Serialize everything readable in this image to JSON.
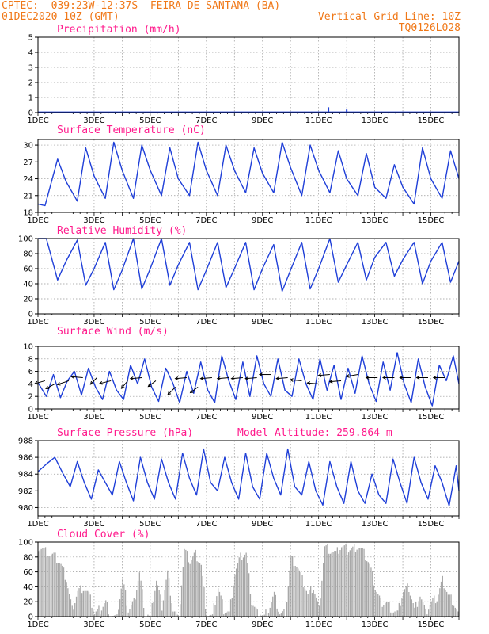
{
  "header": {
    "line1": "CPTEC:  039:23W-12:37S  FEIRA DE SANTANA (BA)",
    "line2": "01DEC2020 10Z (GMT)",
    "grid_note": "Vertical Grid Line: 10Z",
    "code": "TQ0126L028"
  },
  "colors": {
    "header": "#f07818",
    "title": "#ff1a8c",
    "line": "#1f3fd8",
    "cloud": "#a8a8a8"
  },
  "chart_data": [
    {
      "type": "bar",
      "title": "Precipitation (mm/h)",
      "ylim": [
        0,
        5
      ],
      "yticks": [
        0,
        1,
        2,
        3,
        4,
        5
      ],
      "x_labels": [
        "1DEC",
        "3DEC",
        "5DEC",
        "7DEC",
        "9DEC",
        "11DEC",
        "13DEC",
        "15DEC"
      ],
      "x_days": [
        1,
        16
      ],
      "events": [
        {
          "day": 11.35,
          "value": 0.35
        },
        {
          "day": 12.0,
          "value": 0.2
        },
        {
          "day": 12.8,
          "value": 0.05
        }
      ]
    },
    {
      "type": "line",
      "title": "Surface Temperature (nC)",
      "ylim": [
        18,
        31
      ],
      "yticks": [
        18,
        21,
        24,
        27,
        30
      ],
      "x_labels": [
        "1DEC",
        "3DEC",
        "5DEC",
        "7DEC",
        "9DEC",
        "11DEC",
        "13DEC",
        "15DEC"
      ],
      "x_days": [
        1,
        16
      ],
      "x": [
        1.0,
        1.25,
        1.7,
        2.0,
        2.4,
        2.7,
        3.0,
        3.4,
        3.7,
        4.0,
        4.4,
        4.7,
        5.0,
        5.4,
        5.7,
        6.0,
        6.4,
        6.7,
        7.0,
        7.4,
        7.7,
        8.0,
        8.4,
        8.7,
        9.0,
        9.4,
        9.7,
        10.0,
        10.4,
        10.7,
        11.0,
        11.4,
        11.7,
        12.0,
        12.4,
        12.7,
        13.0,
        13.4,
        13.7,
        14.0,
        14.4,
        14.7,
        15.0,
        15.4,
        15.7,
        16.0
      ],
      "values": [
        19.5,
        19.2,
        27.5,
        23.5,
        20.0,
        29.5,
        24.5,
        20.5,
        30.5,
        25.5,
        20.5,
        30.0,
        25.5,
        21.0,
        29.5,
        24.0,
        21.0,
        30.5,
        25.5,
        21.0,
        30.0,
        25.5,
        21.5,
        29.5,
        25.0,
        21.5,
        30.5,
        26.0,
        21.0,
        30.0,
        25.5,
        21.5,
        29.0,
        24.0,
        21.0,
        28.5,
        22.5,
        20.5,
        26.5,
        22.5,
        19.5,
        29.5,
        24.0,
        20.5,
        29.0,
        24.0
      ]
    },
    {
      "type": "line",
      "title": "Relative Humidity (%)",
      "ylim": [
        0,
        100
      ],
      "yticks": [
        0,
        20,
        40,
        60,
        80,
        100
      ],
      "x_labels": [
        "1DEC",
        "3DEC",
        "5DEC",
        "7DEC",
        "9DEC",
        "11DEC",
        "13DEC",
        "15DEC"
      ],
      "x_days": [
        1,
        16
      ],
      "x": [
        1.0,
        1.3,
        1.7,
        2.0,
        2.4,
        2.7,
        3.0,
        3.4,
        3.7,
        4.0,
        4.4,
        4.7,
        5.0,
        5.4,
        5.7,
        6.0,
        6.4,
        6.7,
        7.0,
        7.4,
        7.7,
        8.0,
        8.4,
        8.7,
        9.0,
        9.4,
        9.7,
        10.0,
        10.4,
        10.7,
        11.0,
        11.4,
        11.7,
        12.0,
        12.4,
        12.7,
        13.0,
        13.4,
        13.7,
        14.0,
        14.4,
        14.7,
        15.0,
        15.4,
        15.7,
        16.0
      ],
      "values": [
        100,
        100,
        45,
        70,
        98,
        38,
        60,
        95,
        32,
        58,
        100,
        33,
        60,
        100,
        38,
        65,
        95,
        32,
        58,
        95,
        35,
        60,
        95,
        32,
        60,
        92,
        30,
        58,
        95,
        33,
        60,
        100,
        42,
        65,
        95,
        45,
        75,
        95,
        50,
        72,
        95,
        40,
        70,
        95,
        42,
        70
      ]
    },
    {
      "type": "line",
      "title": "Surface Wind (m/s)",
      "ylim": [
        0,
        10
      ],
      "yticks": [
        0,
        2,
        4,
        6,
        8,
        10
      ],
      "x_labels": [
        "1DEC",
        "3DEC",
        "5DEC",
        "7DEC",
        "9DEC",
        "11DEC",
        "13DEC",
        "15DEC"
      ],
      "x_days": [
        1,
        16
      ],
      "x": [
        1.0,
        1.3,
        1.55,
        1.8,
        2.05,
        2.3,
        2.55,
        2.8,
        3.05,
        3.3,
        3.55,
        3.8,
        4.05,
        4.3,
        4.55,
        4.8,
        5.05,
        5.3,
        5.55,
        5.8,
        6.05,
        6.3,
        6.55,
        6.8,
        7.05,
        7.3,
        7.55,
        7.8,
        8.05,
        8.3,
        8.55,
        8.8,
        9.05,
        9.3,
        9.55,
        9.8,
        10.05,
        10.3,
        10.55,
        10.8,
        11.05,
        11.3,
        11.55,
        11.8,
        12.05,
        12.3,
        12.55,
        12.8,
        13.05,
        13.3,
        13.55,
        13.8,
        14.05,
        14.3,
        14.55,
        14.8,
        15.05,
        15.3,
        15.55,
        15.8,
        16.0
      ],
      "values": [
        4.2,
        2.0,
        5.5,
        1.8,
        4.5,
        6.0,
        2.2,
        6.5,
        3.5,
        1.5,
        6.0,
        3.0,
        1.5,
        7.0,
        4.0,
        8.0,
        3.5,
        1.2,
        6.5,
        4.2,
        1.0,
        6.0,
        2.5,
        7.5,
        3.0,
        1.0,
        8.5,
        4.5,
        1.5,
        7.5,
        2.0,
        8.5,
        4.0,
        2.0,
        8.0,
        3.0,
        2.0,
        8.0,
        4.0,
        1.5,
        8.0,
        3.0,
        7.0,
        1.5,
        6.5,
        2.5,
        8.5,
        4.0,
        1.2,
        7.5,
        3.0,
        9.0,
        4.0,
        1.0,
        8.0,
        3.5,
        0.5,
        7.0,
        4.5,
        8.5,
        4.0
      ],
      "arrows": [
        {
          "day": 1.25,
          "speed": 4.5,
          "dx": -8,
          "dy": 3
        },
        {
          "day": 1.6,
          "speed": 4.0,
          "dx": -7,
          "dy": 5
        },
        {
          "day": 2.1,
          "speed": 4.5,
          "dx": -9,
          "dy": 4
        },
        {
          "day": 2.6,
          "speed": 5.0,
          "dx": -9,
          "dy": -1
        },
        {
          "day": 3.1,
          "speed": 5.0,
          "dx": -5,
          "dy": 7
        },
        {
          "day": 3.6,
          "speed": 4.5,
          "dx": -9,
          "dy": 3
        },
        {
          "day": 4.2,
          "speed": 4.5,
          "dx": -5,
          "dy": 8
        },
        {
          "day": 4.7,
          "speed": 5.0,
          "dx": -9,
          "dy": 1
        },
        {
          "day": 5.2,
          "speed": 4.5,
          "dx": -6,
          "dy": 6
        },
        {
          "day": 5.9,
          "speed": 3.5,
          "dx": -6,
          "dy": 8
        },
        {
          "day": 6.3,
          "speed": 5.0,
          "dx": -9,
          "dy": 1
        },
        {
          "day": 6.7,
          "speed": 3.5,
          "dx": -6,
          "dy": 6
        },
        {
          "day": 7.2,
          "speed": 5.0,
          "dx": -9,
          "dy": 1
        },
        {
          "day": 7.8,
          "speed": 5.0,
          "dx": -9,
          "dy": 1
        },
        {
          "day": 8.3,
          "speed": 5.0,
          "dx": -9,
          "dy": 1
        },
        {
          "day": 8.8,
          "speed": 5.0,
          "dx": -9,
          "dy": 1
        },
        {
          "day": 9.3,
          "speed": 5.5,
          "dx": -9,
          "dy": 0
        },
        {
          "day": 9.9,
          "speed": 5.0,
          "dx": -9,
          "dy": 1
        },
        {
          "day": 10.4,
          "speed": 4.5,
          "dx": -9,
          "dy": -1
        },
        {
          "day": 11.0,
          "speed": 4.0,
          "dx": -9,
          "dy": -1
        },
        {
          "day": 11.4,
          "speed": 5.5,
          "dx": -9,
          "dy": 1
        },
        {
          "day": 11.8,
          "speed": 4.5,
          "dx": -9,
          "dy": 1
        },
        {
          "day": 12.4,
          "speed": 5.5,
          "dx": -9,
          "dy": 2
        },
        {
          "day": 13.1,
          "speed": 5.0,
          "dx": -9,
          "dy": 0
        },
        {
          "day": 13.7,
          "speed": 5.0,
          "dx": -9,
          "dy": 0
        },
        {
          "day": 14.3,
          "speed": 5.0,
          "dx": -9,
          "dy": 0
        },
        {
          "day": 14.9,
          "speed": 5.0,
          "dx": -9,
          "dy": 0
        },
        {
          "day": 15.5,
          "speed": 5.0,
          "dx": -9,
          "dy": 0
        }
      ]
    },
    {
      "type": "line",
      "title": "Surface Pressure (hPa)",
      "subtitle": "Model Altitude: 259.864 m",
      "ylim": [
        979,
        988
      ],
      "yticks": [
        980,
        982,
        984,
        986,
        988
      ],
      "x_labels": [
        "1DEC",
        "3DEC",
        "5DEC",
        "7DEC",
        "9DEC",
        "11DEC",
        "13DEC",
        "15DEC"
      ],
      "x_days": [
        1,
        16
      ],
      "x": [
        1.0,
        1.3,
        1.6,
        1.9,
        2.15,
        2.4,
        2.65,
        2.9,
        3.15,
        3.4,
        3.65,
        3.9,
        4.15,
        4.4,
        4.65,
        4.9,
        5.15,
        5.4,
        5.65,
        5.9,
        6.15,
        6.4,
        6.65,
        6.9,
        7.15,
        7.4,
        7.65,
        7.9,
        8.15,
        8.4,
        8.65,
        8.9,
        9.15,
        9.4,
        9.65,
        9.9,
        10.15,
        10.4,
        10.65,
        10.9,
        11.15,
        11.4,
        11.65,
        11.9,
        12.15,
        12.4,
        12.65,
        12.9,
        13.15,
        13.4,
        13.65,
        13.9,
        14.15,
        14.4,
        14.65,
        14.9,
        15.15,
        15.4,
        15.65,
        15.9,
        16.0
      ],
      "values": [
        984.3,
        985.2,
        986.0,
        984.0,
        982.5,
        985.5,
        983.0,
        981.0,
        984.5,
        983.0,
        981.5,
        985.5,
        983.0,
        980.8,
        986.0,
        983.0,
        981.0,
        985.8,
        983.0,
        981.0,
        986.5,
        983.5,
        981.5,
        987.0,
        983.0,
        982.0,
        986.0,
        983.0,
        981.0,
        986.5,
        982.5,
        981.0,
        986.5,
        983.5,
        981.5,
        987.0,
        982.5,
        981.5,
        985.5,
        982.0,
        980.3,
        985.5,
        982.5,
        980.5,
        985.5,
        982.0,
        980.5,
        984.0,
        981.5,
        980.5,
        985.8,
        983.0,
        980.5,
        986.0,
        983.0,
        981.0,
        985.0,
        983.0,
        980.2,
        985.0,
        982.0
      ]
    },
    {
      "type": "area",
      "title": "Cloud Cover (%)",
      "ylim": [
        0,
        100
      ],
      "yticks": [
        0,
        20,
        40,
        60,
        80,
        100
      ],
      "x_labels": [
        "1DEC",
        "3DEC",
        "5DEC",
        "7DEC",
        "9DEC",
        "11DEC",
        "13DEC",
        "15DEC"
      ],
      "x_days": [
        1,
        16
      ],
      "x": [
        1.0,
        1.2,
        1.4,
        1.6,
        1.8,
        2.0,
        2.2,
        2.4,
        2.6,
        2.8,
        3.0,
        3.2,
        3.4,
        3.6,
        3.8,
        4.0,
        4.2,
        4.4,
        4.6,
        4.8,
        5.0,
        5.2,
        5.4,
        5.6,
        5.8,
        6.0,
        6.2,
        6.4,
        6.6,
        6.8,
        7.0,
        7.2,
        7.4,
        7.6,
        7.8,
        8.0,
        8.2,
        8.4,
        8.6,
        8.8,
        9.0,
        9.2,
        9.4,
        9.6,
        9.8,
        10.0,
        10.2,
        10.4,
        10.6,
        10.8,
        11.0,
        11.2,
        11.4,
        11.6,
        11.8,
        12.0,
        12.2,
        12.4,
        12.6,
        12.8,
        13.0,
        13.2,
        13.4,
        13.6,
        13.8,
        14.0,
        14.2,
        14.4,
        14.6,
        14.8,
        15.0,
        15.2,
        15.4,
        15.6,
        15.8,
        16.0
      ],
      "values": [
        95,
        90,
        85,
        80,
        70,
        50,
        10,
        35,
        40,
        30,
        5,
        10,
        20,
        0,
        3,
        50,
        10,
        20,
        60,
        5,
        0,
        50,
        15,
        60,
        10,
        0,
        90,
        75,
        85,
        70,
        0,
        3,
        40,
        10,
        5,
        60,
        80,
        85,
        20,
        5,
        0,
        10,
        30,
        3,
        5,
        80,
        70,
        50,
        30,
        40,
        10,
        95,
        90,
        85,
        95,
        90,
        92,
        95,
        85,
        70,
        40,
        20,
        20,
        10,
        5,
        35,
        40,
        10,
        30,
        5,
        20,
        25,
        50,
        30,
        20,
        0
      ]
    }
  ]
}
